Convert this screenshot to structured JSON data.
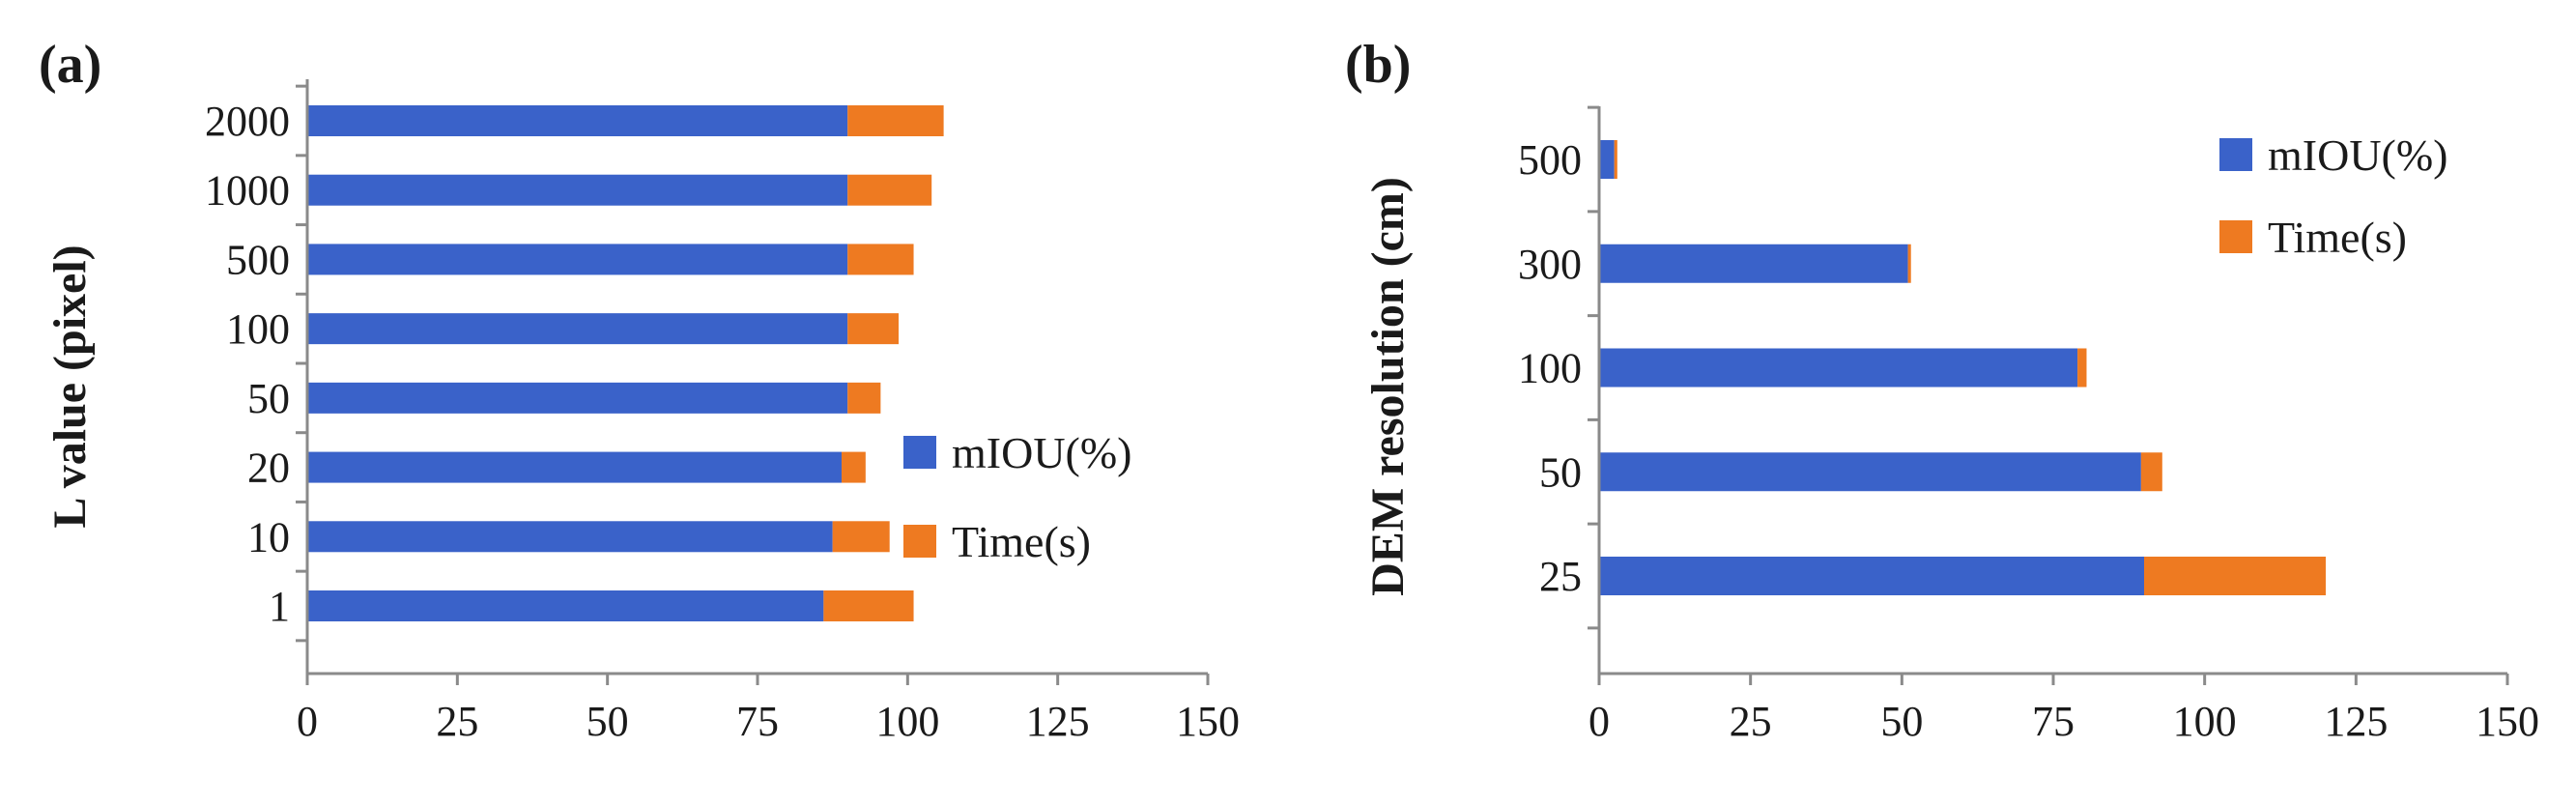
{
  "chart_data": [
    {
      "type": "bar",
      "orientation": "horizontal",
      "stacked": true,
      "panel_label": "(a)",
      "ylabel": "L value (pixel)",
      "xlabel": "",
      "categories": [
        "1",
        "10",
        "20",
        "50",
        "100",
        "500",
        "1000",
        "2000"
      ],
      "series": [
        {
          "name": "mIOU(%)",
          "color": "#3a62c9",
          "values": [
            86,
            87.5,
            89,
            90,
            90,
            90,
            90,
            90
          ]
        },
        {
          "name": "Time(s)",
          "color": "#ee7a21",
          "values": [
            15,
            9.5,
            4,
            5.5,
            8.5,
            11,
            14,
            16
          ]
        }
      ],
      "xlim": [
        0,
        150
      ],
      "xticks": [
        "0",
        "25",
        "50",
        "75",
        "100",
        "125",
        "150"
      ],
      "grid": false,
      "legend_position": "right"
    },
    {
      "type": "bar",
      "orientation": "horizontal",
      "stacked": true,
      "panel_label": "(b)",
      "ylabel": "DEM resolution (cm)",
      "xlabel": "",
      "categories": [
        "25",
        "50",
        "100",
        "300",
        "500"
      ],
      "series": [
        {
          "name": "mIOU(%)",
          "color": "#3a62c9",
          "values": [
            90,
            89.5,
            79,
            51,
            2.5
          ]
        },
        {
          "name": "Time(s)",
          "color": "#ee7a21",
          "values": [
            30,
            3.5,
            1.5,
            0.5,
            0.5
          ]
        }
      ],
      "xlim": [
        0,
        150
      ],
      "xticks": [
        "0",
        "25",
        "50",
        "75",
        "100",
        "125",
        "150"
      ],
      "grid": false,
      "legend_position": "top-right"
    }
  ]
}
